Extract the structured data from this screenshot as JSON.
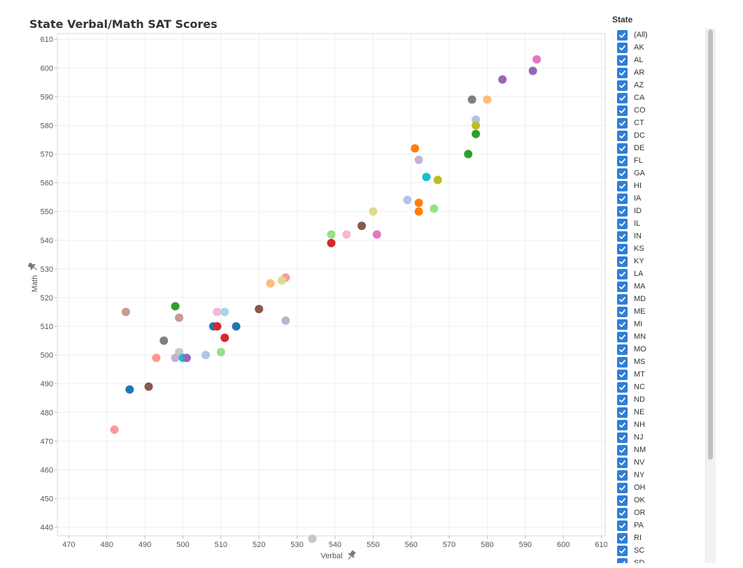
{
  "chart_data": {
    "type": "scatter",
    "title": "State Verbal/Math SAT Scores",
    "xlabel": "Verbal",
    "ylabel": "Math",
    "xlim": [
      467,
      611
    ],
    "ylim": [
      437,
      612
    ],
    "x_ticks": [
      470,
      480,
      490,
      500,
      510,
      520,
      530,
      540,
      550,
      560,
      570,
      580,
      590,
      600,
      610
    ],
    "y_ticks": [
      440,
      450,
      460,
      470,
      480,
      490,
      500,
      510,
      520,
      530,
      540,
      550,
      560,
      570,
      580,
      590,
      600,
      610
    ],
    "grid": true,
    "legend_position": "right",
    "points": [
      {
        "x": 593,
        "y": 603,
        "color": "#e377c2"
      },
      {
        "x": 584,
        "y": 596,
        "color": "#9467bd"
      },
      {
        "x": 592,
        "y": 599,
        "color": "#9467bd"
      },
      {
        "x": 576,
        "y": 589,
        "color": "#7f7f7f"
      },
      {
        "x": 580,
        "y": 589,
        "color": "#ffbb78"
      },
      {
        "x": 577,
        "y": 582,
        "color": "#aec7e8"
      },
      {
        "x": 577,
        "y": 580,
        "color": "#bcbd22"
      },
      {
        "x": 577,
        "y": 577,
        "color": "#2ca02c"
      },
      {
        "x": 575,
        "y": 570,
        "color": "#2ca02c"
      },
      {
        "x": 561,
        "y": 572,
        "color": "#ff7f0e"
      },
      {
        "x": 562,
        "y": 568,
        "color": "#c5b0d5"
      },
      {
        "x": 564,
        "y": 562,
        "color": "#17becf"
      },
      {
        "x": 567,
        "y": 561,
        "color": "#bcbd22"
      },
      {
        "x": 559,
        "y": 554,
        "color": "#aec7e8"
      },
      {
        "x": 562,
        "y": 553,
        "color": "#ff7f0e"
      },
      {
        "x": 562,
        "y": 550,
        "color": "#ff7f0e"
      },
      {
        "x": 566,
        "y": 551,
        "color": "#98df8a"
      },
      {
        "x": 550,
        "y": 550,
        "color": "#dbdb8d"
      },
      {
        "x": 547,
        "y": 545,
        "color": "#8c564b"
      },
      {
        "x": 551,
        "y": 542,
        "color": "#e377c2"
      },
      {
        "x": 543,
        "y": 542,
        "color": "#f7b6d2"
      },
      {
        "x": 539,
        "y": 542,
        "color": "#98df8a"
      },
      {
        "x": 539,
        "y": 539,
        "color": "#d62728"
      },
      {
        "x": 527,
        "y": 527,
        "color": "#ff9896"
      },
      {
        "x": 526,
        "y": 526,
        "color": "#dbdb8d"
      },
      {
        "x": 523,
        "y": 525,
        "color": "#ffbb78"
      },
      {
        "x": 520,
        "y": 516,
        "color": "#8c564b"
      },
      {
        "x": 527,
        "y": 512,
        "color": "#c5b0d5"
      },
      {
        "x": 485,
        "y": 515,
        "color": "#c49c94"
      },
      {
        "x": 498,
        "y": 517,
        "color": "#2ca02c"
      },
      {
        "x": 499,
        "y": 513,
        "color": "#c49c94"
      },
      {
        "x": 509,
        "y": 515,
        "color": "#f7b6d2"
      },
      {
        "x": 511,
        "y": 515,
        "color": "#9edae5"
      },
      {
        "x": 508,
        "y": 510,
        "color": "#1f77b4"
      },
      {
        "x": 509,
        "y": 510,
        "color": "#d62728"
      },
      {
        "x": 514,
        "y": 510,
        "color": "#1f77b4"
      },
      {
        "x": 511,
        "y": 506,
        "color": "#d62728"
      },
      {
        "x": 495,
        "y": 505,
        "color": "#7f7f7f"
      },
      {
        "x": 499,
        "y": 501,
        "color": "#c7c7c7"
      },
      {
        "x": 510,
        "y": 501,
        "color": "#98df8a"
      },
      {
        "x": 506,
        "y": 500,
        "color": "#aec7e8"
      },
      {
        "x": 493,
        "y": 499,
        "color": "#ff9896"
      },
      {
        "x": 498,
        "y": 499,
        "color": "#c5b0d5"
      },
      {
        "x": 500,
        "y": 499,
        "color": "#17becf"
      },
      {
        "x": 501,
        "y": 499,
        "color": "#9467bd"
      },
      {
        "x": 491,
        "y": 489,
        "color": "#8c564b"
      },
      {
        "x": 486,
        "y": 488,
        "color": "#1f77b4"
      },
      {
        "x": 482,
        "y": 474,
        "color": "#ff9896"
      },
      {
        "x": 534,
        "y": 436,
        "color": "#c7c7c7"
      }
    ]
  },
  "axes": {
    "x_pin_icon": "pin-icon",
    "y_pin_icon": "pin-icon"
  },
  "legend": {
    "title": "State",
    "check_color": "#2f7fd6",
    "items": [
      {
        "label": "(All)",
        "checked": true
      },
      {
        "label": "AK",
        "checked": true
      },
      {
        "label": "AL",
        "checked": true
      },
      {
        "label": "AR",
        "checked": true
      },
      {
        "label": "AZ",
        "checked": true
      },
      {
        "label": "CA",
        "checked": true
      },
      {
        "label": "CO",
        "checked": true
      },
      {
        "label": "CT",
        "checked": true
      },
      {
        "label": "DC",
        "checked": true
      },
      {
        "label": "DE",
        "checked": true
      },
      {
        "label": "FL",
        "checked": true
      },
      {
        "label": "GA",
        "checked": true
      },
      {
        "label": "HI",
        "checked": true
      },
      {
        "label": "IA",
        "checked": true
      },
      {
        "label": "ID",
        "checked": true
      },
      {
        "label": "IL",
        "checked": true
      },
      {
        "label": "IN",
        "checked": true
      },
      {
        "label": "KS",
        "checked": true
      },
      {
        "label": "KY",
        "checked": true
      },
      {
        "label": "LA",
        "checked": true
      },
      {
        "label": "MA",
        "checked": true
      },
      {
        "label": "MD",
        "checked": true
      },
      {
        "label": "ME",
        "checked": true
      },
      {
        "label": "MI",
        "checked": true
      },
      {
        "label": "MN",
        "checked": true
      },
      {
        "label": "MO",
        "checked": true
      },
      {
        "label": "MS",
        "checked": true
      },
      {
        "label": "MT",
        "checked": true
      },
      {
        "label": "NC",
        "checked": true
      },
      {
        "label": "ND",
        "checked": true
      },
      {
        "label": "NE",
        "checked": true
      },
      {
        "label": "NH",
        "checked": true
      },
      {
        "label": "NJ",
        "checked": true
      },
      {
        "label": "NM",
        "checked": true
      },
      {
        "label": "NV",
        "checked": true
      },
      {
        "label": "NY",
        "checked": true
      },
      {
        "label": "OH",
        "checked": true
      },
      {
        "label": "OK",
        "checked": true
      },
      {
        "label": "OR",
        "checked": true
      },
      {
        "label": "PA",
        "checked": true
      },
      {
        "label": "RI",
        "checked": true
      },
      {
        "label": "SC",
        "checked": true
      },
      {
        "label": "SD",
        "checked": true
      }
    ]
  }
}
